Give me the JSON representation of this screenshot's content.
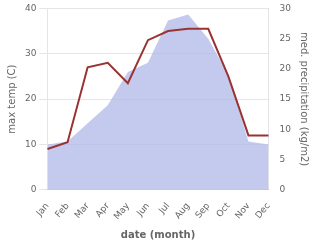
{
  "chart_data": {
    "type": "line",
    "xlabel": "date (month)",
    "ylabel": "max temp (C)",
    "y2label": "med. precipitation (kg/m2)",
    "categories": [
      "Jan",
      "Feb",
      "Mar",
      "Apr",
      "May",
      "Jun",
      "Jul",
      "Aug",
      "Sep",
      "Oct",
      "Nov",
      "Dec"
    ],
    "series": [
      {
        "type": "area",
        "color": "#b0b8e8",
        "axis": "y2",
        "values": [
          7.5,
          8,
          11,
          14,
          19.5,
          21,
          28,
          29,
          25,
          19,
          8,
          7.5
        ]
      },
      {
        "type": "line",
        "color": "#993333",
        "values": [
          9,
          10.5,
          27,
          28,
          23.5,
          33,
          35,
          35.5,
          35.5,
          25,
          12,
          12
        ]
      }
    ],
    "ylim": [
      0,
      40
    ],
    "yticks": [
      0,
      10,
      20,
      30,
      40
    ],
    "y2lim": [
      0,
      30
    ],
    "y2ticks": [
      0,
      5,
      10,
      15,
      20,
      25,
      30
    ],
    "grid": true
  }
}
